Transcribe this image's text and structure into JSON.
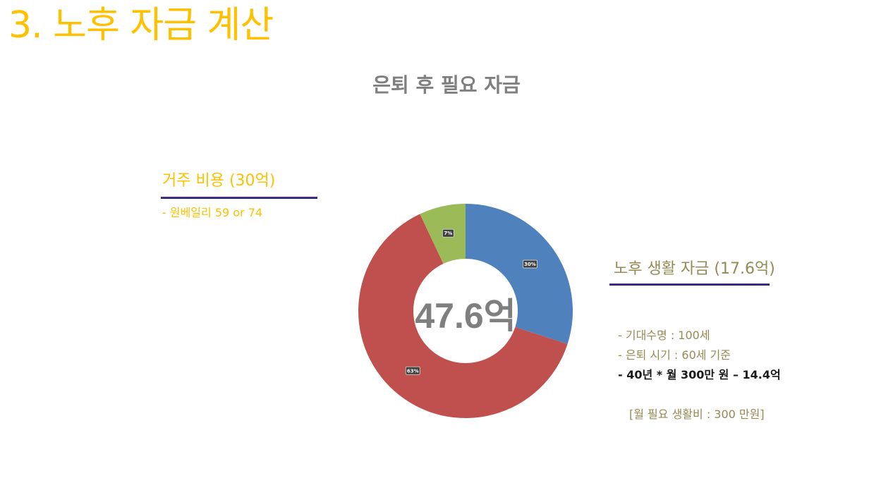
{
  "slide": {
    "title": "3. 노후 자금 계산"
  },
  "chart_data": {
    "type": "donut",
    "title": "은퇴 후 필요 자금",
    "center_label": "47.6억",
    "unit": "%",
    "slices": [
      {
        "value": 30,
        "label": "30%",
        "color": "#4F81BD"
      },
      {
        "value": 63,
        "label": "63%",
        "color": "#C0504D"
      },
      {
        "value": 7,
        "label": "7%",
        "color": "#9BBB59"
      }
    ],
    "start_angle_deg": 0,
    "direction": "clockwise"
  },
  "housing": {
    "heading": "거주 비용 (30억)",
    "item": "-  원베일리 59 or 74"
  },
  "retirement": {
    "heading": "노후 생활 자금 (17.6억)",
    "items": [
      "- 기대수명 : 100세",
      "-  은퇴 시기 : 60세 기준",
      "-  40년 * 월 300만 원 – 14.4억"
    ],
    "note": "[월 필요 생활비 : 300 만원]"
  }
}
